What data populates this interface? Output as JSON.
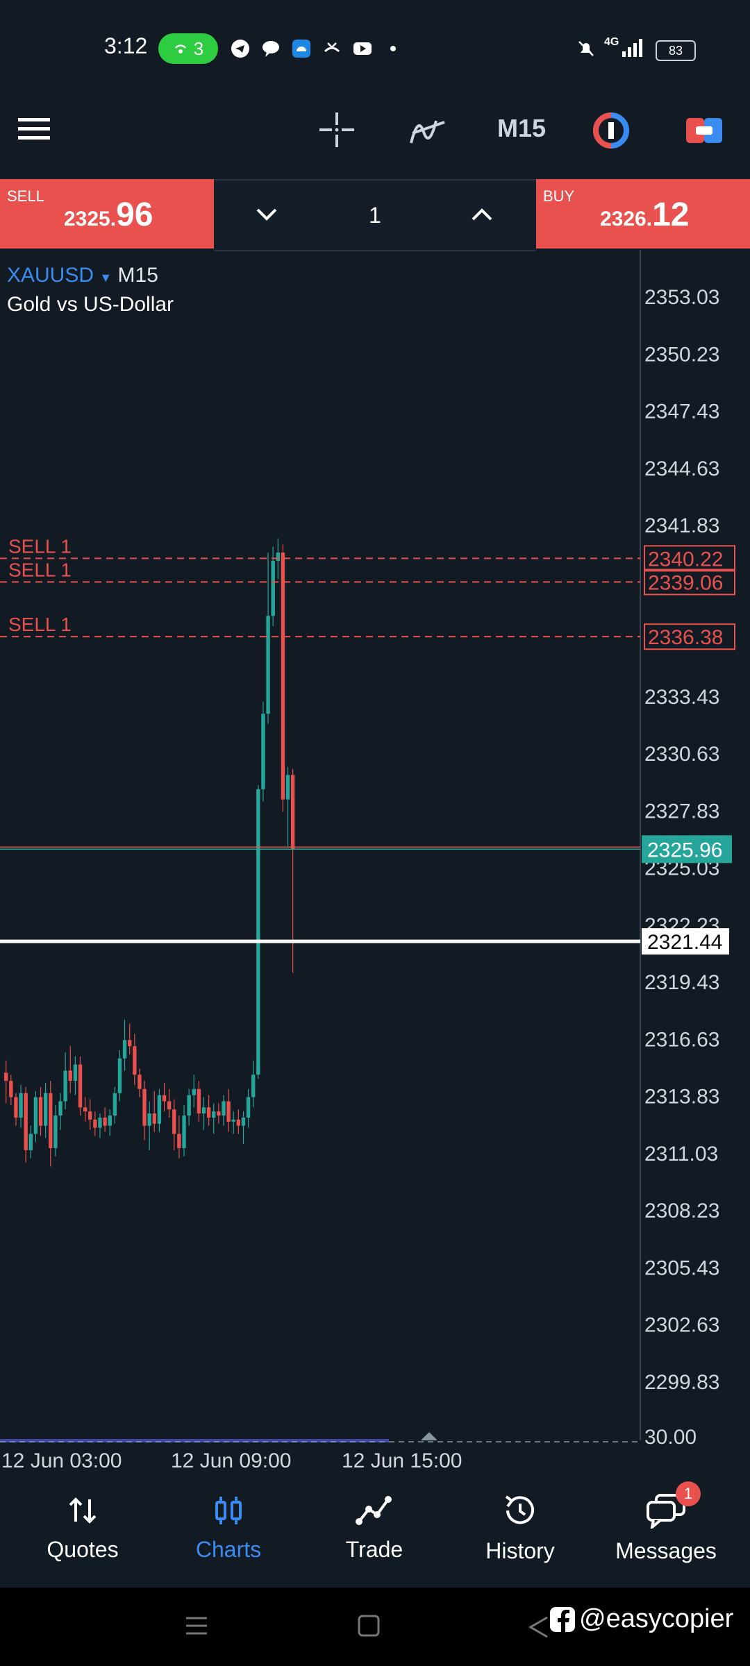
{
  "status_bar": {
    "time": "3:12",
    "hotspot_count": "3",
    "network": "4G",
    "battery": "83"
  },
  "toolbar": {
    "timeframe": "M15"
  },
  "trade_panel": {
    "sell_label": "SELL",
    "sell_price_main": "2325.",
    "sell_price_pips": "96",
    "buy_label": "BUY",
    "buy_price_main": "2326.",
    "buy_price_pips": "12",
    "volume": "1"
  },
  "chart": {
    "symbol": "XAUUSD",
    "timeframe": "M15",
    "description": "Gold vs US-Dollar",
    "price_axis": [
      "2353.03",
      "2350.23",
      "2347.43",
      "2344.63",
      "2341.83",
      "2333.43",
      "2330.63",
      "2327.83",
      "2325.03",
      "2322.23",
      "2319.43",
      "2316.63",
      "2313.83",
      "2311.03",
      "2308.23",
      "2305.43",
      "2302.63",
      "2299.83",
      "30.00"
    ],
    "time_axis": [
      "12 Jun 03:00",
      "12 Jun 09:00",
      "12 Jun 15:00"
    ],
    "orders": [
      {
        "label": "SELL 1",
        "price": "2340.22"
      },
      {
        "label": "SELL 1",
        "price": "2339.06"
      },
      {
        "label": "SELL 1",
        "price": "2336.38"
      }
    ],
    "bid_price": "2325.96",
    "crosshair_price": "2321.44",
    "colors": {
      "bull": "#26a69a",
      "bear": "#e8514d",
      "order": "#e8514d",
      "background": "#121a24"
    }
  },
  "nav": {
    "items": [
      {
        "label": "Quotes",
        "icon": "arrows-up-down-icon"
      },
      {
        "label": "Charts",
        "icon": "candles-icon"
      },
      {
        "label": "Trade",
        "icon": "trend-line-icon"
      },
      {
        "label": "History",
        "icon": "history-icon"
      },
      {
        "label": "Messages",
        "icon": "chat-icon"
      }
    ],
    "messages_badge": "1"
  },
  "watermark": "@easycopier"
}
